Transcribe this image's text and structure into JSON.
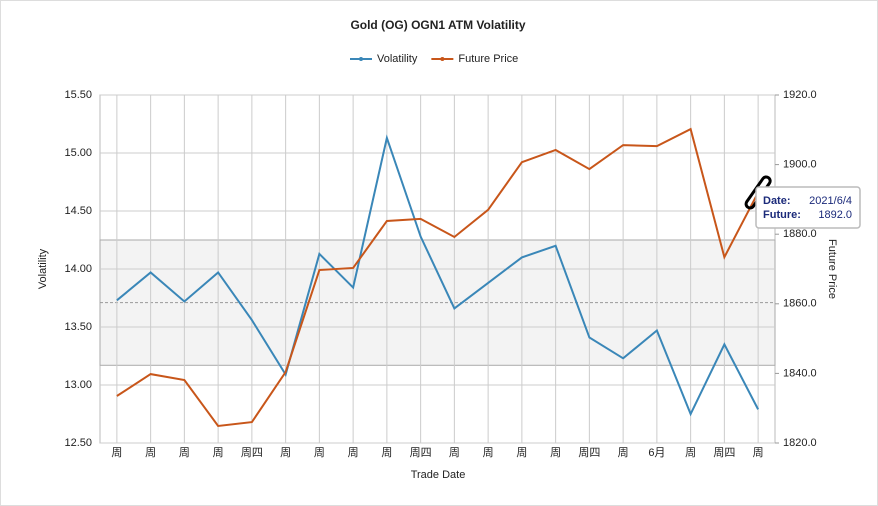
{
  "chart_data": {
    "type": "line",
    "title": "Gold (OG) OGN1 ATM Volatility",
    "xlabel": "Trade Date",
    "ylabel": "Volatility",
    "y2label": "Future Price",
    "categories": [
      "周",
      "周",
      "周",
      "周",
      "周四",
      "周",
      "周",
      "周",
      "周",
      "周四",
      "周",
      "周",
      "周",
      "周",
      "周四",
      "周",
      "6月",
      "周",
      "周四",
      "周"
    ],
    "series": [
      {
        "name": "Volatility",
        "color": "#3a87b8",
        "values": [
          13.73,
          13.97,
          13.72,
          13.97,
          13.56,
          13.09,
          14.13,
          13.84,
          15.13,
          14.28,
          13.66,
          13.88,
          14.1,
          14.2,
          13.41,
          13.23,
          13.47,
          12.75,
          13.35,
          12.79
        ]
      },
      {
        "name": "Future Price",
        "color": "#c8561a",
        "axis": "y2",
        "values": [
          1833.5,
          1839.8,
          1838.1,
          1824.9,
          1826.0,
          1840.4,
          1869.7,
          1870.3,
          1883.8,
          1884.4,
          1879.2,
          1887.0,
          1900.7,
          1904.2,
          1898.7,
          1905.6,
          1905.3,
          1910.2,
          1873.4,
          1892.0
        ]
      }
    ],
    "ylim": [
      12.5,
      15.5
    ],
    "yticks": [
      {
        "value": 12.5,
        "label": "12.50"
      },
      {
        "value": 13,
        "label": "13.00"
      },
      {
        "value": 13.5,
        "label": "13.50"
      },
      {
        "value": 14,
        "label": "14.00"
      },
      {
        "value": 14.5,
        "label": "14.50"
      },
      {
        "value": 15,
        "label": "15.00"
      },
      {
        "value": 15.5,
        "label": "15.50"
      }
    ],
    "y2lim": [
      1820,
      1920
    ],
    "y2ticks": [
      {
        "value": 1820,
        "label": "1820.0"
      },
      {
        "value": 1840,
        "label": "1840.0"
      },
      {
        "value": 1860,
        "label": "1860.0"
      },
      {
        "value": 1880,
        "label": "1880.0"
      },
      {
        "value": 1900,
        "label": "1900.0"
      },
      {
        "value": 1920,
        "label": "1920.0"
      }
    ],
    "band": {
      "low": 13.17,
      "mean": 13.71,
      "high": 14.25
    },
    "grid": true,
    "legend": "top",
    "tooltip": {
      "date_label": "Date:",
      "date": "2021/6/4",
      "future_label": "Future:",
      "future": "1892.0"
    }
  }
}
